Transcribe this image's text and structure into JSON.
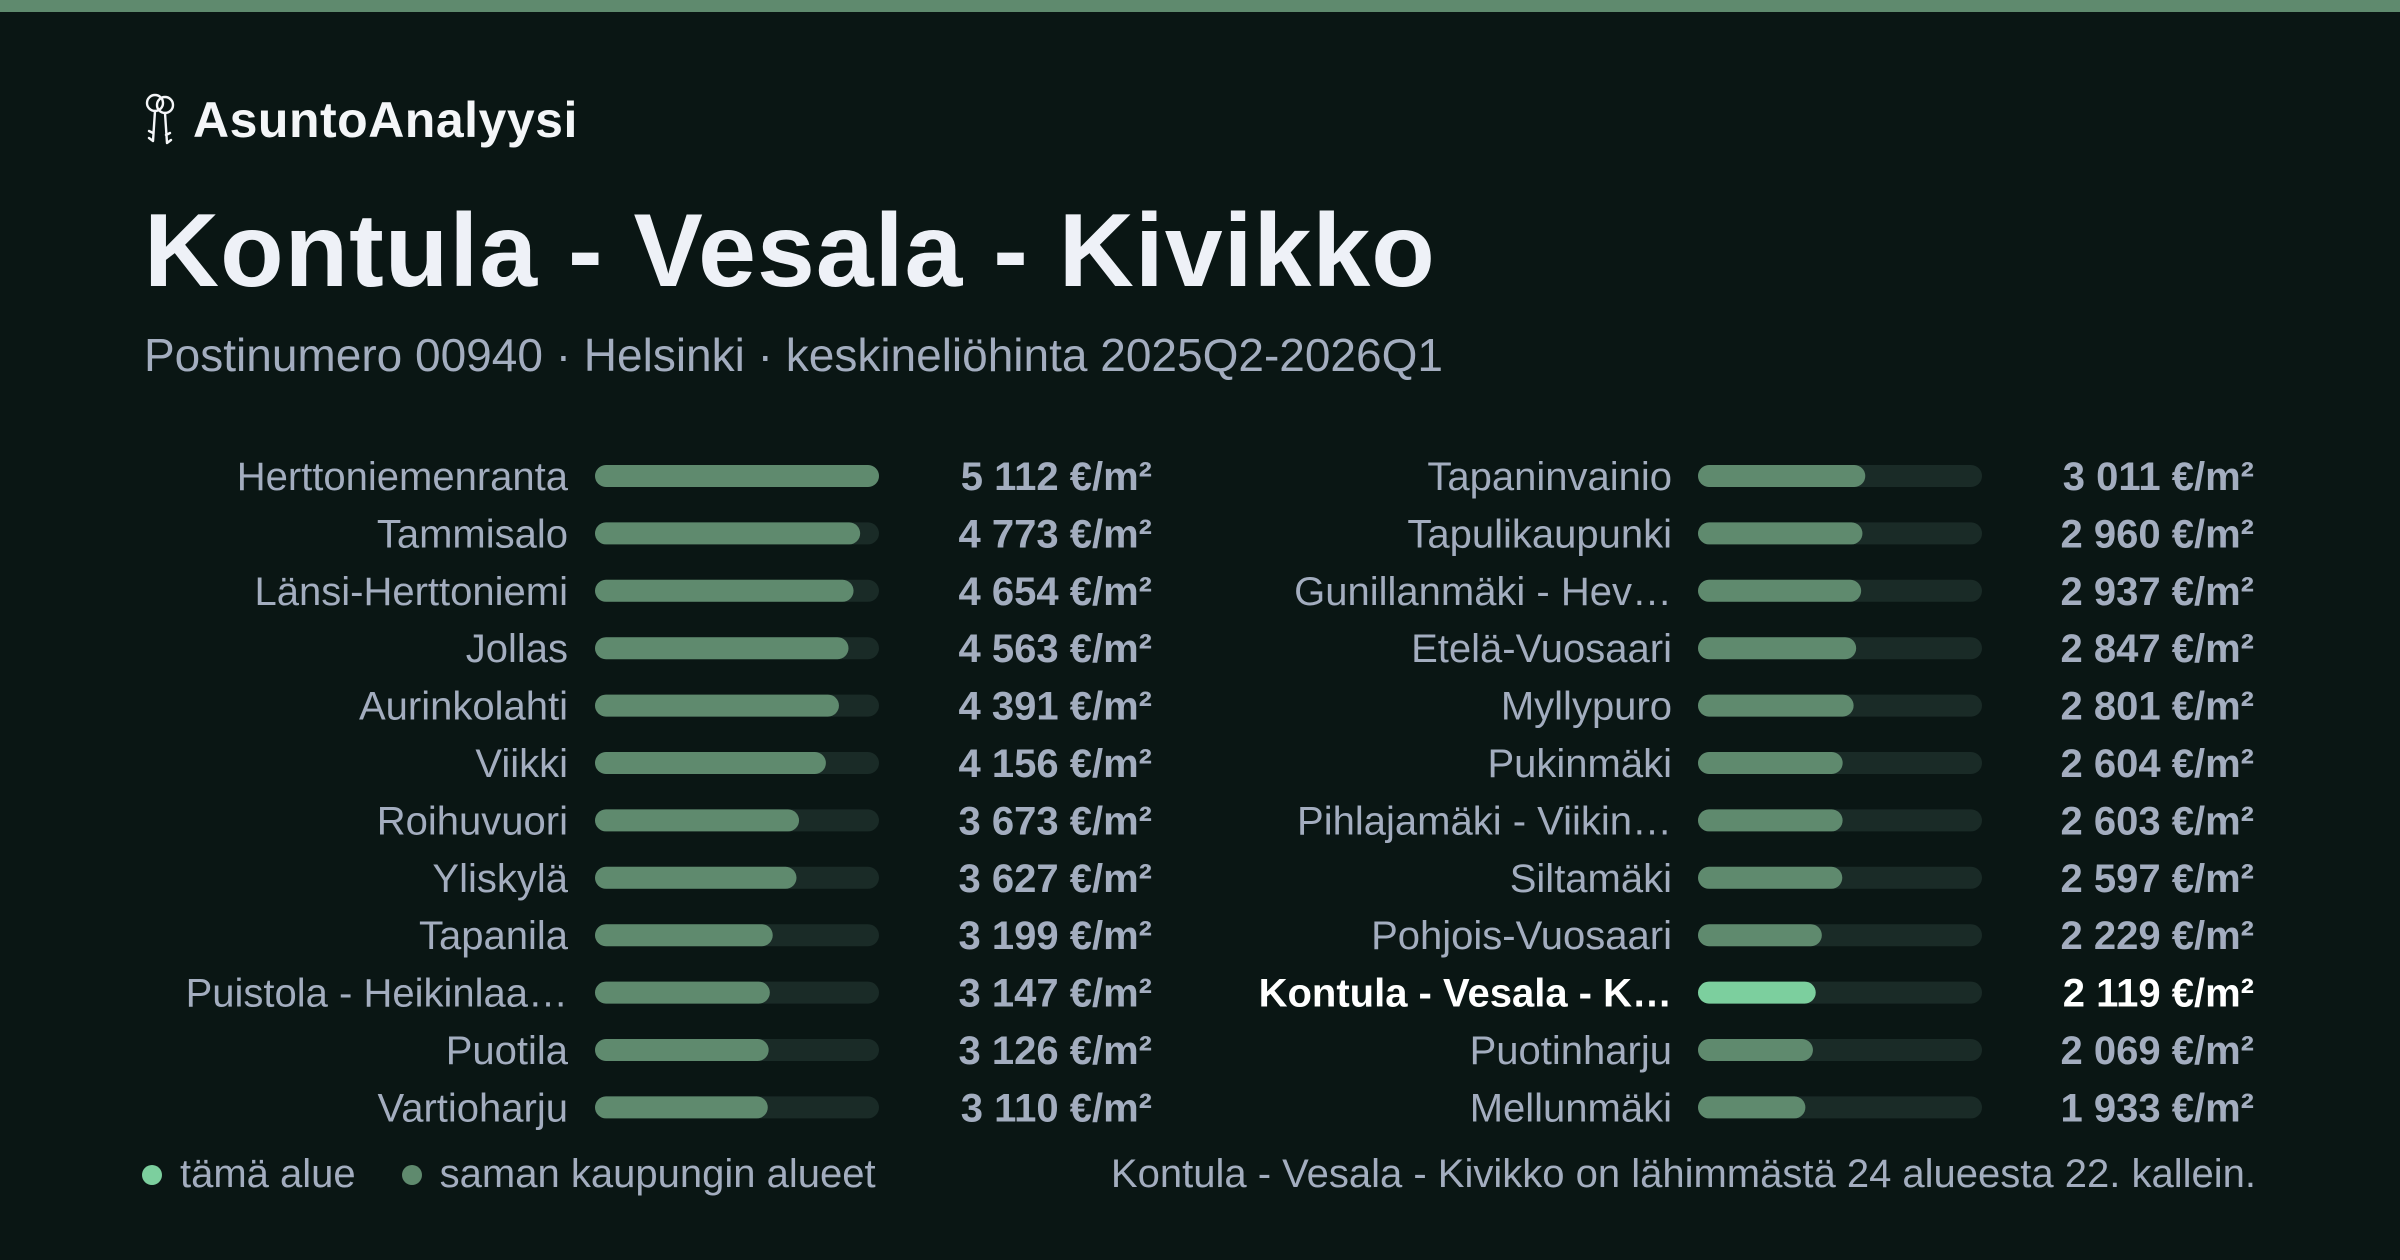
{
  "brand": {
    "name": "AsuntoAnalyysi",
    "icon": "keys-icon"
  },
  "header": {
    "title": "Kontula - Vesala - Kivikko",
    "subtitle": "Postinumero 00940 · Helsinki · keskineliöhinta 2025Q2-2026Q1"
  },
  "colors": {
    "background": "#0a1614",
    "accent_stripe": "#5f8a6e",
    "bar_default": "#5f8a6e",
    "bar_highlight": "#7ccf9e",
    "bar_track": "#1a2b27",
    "label": "#a3adbf",
    "label_highlight": "#ffffff"
  },
  "chart_data": {
    "type": "bar",
    "orientation": "horizontal",
    "unit": "€/m²",
    "xlim": [
      0,
      5112
    ],
    "highlight": "Kontula - Vesala - K…",
    "columns": [
      {
        "categories": [
          "Herttoniemenranta",
          "Tammisalo",
          "Länsi-Herttoniemi",
          "Jollas",
          "Aurinkolahti",
          "Viikki",
          "Roihuvuori",
          "Yliskylä",
          "Tapanila",
          "Puistola - Heikinlaa…",
          "Puotila",
          "Vartioharju"
        ],
        "values": [
          5112,
          4773,
          4654,
          4563,
          4391,
          4156,
          3673,
          3627,
          3199,
          3147,
          3126,
          3110
        ],
        "value_labels": [
          "5 112 €/m²",
          "4 773 €/m²",
          "4 654 €/m²",
          "4 563 €/m²",
          "4 391 €/m²",
          "4 156 €/m²",
          "3 673 €/m²",
          "3 627 €/m²",
          "3 199 €/m²",
          "3 147 €/m²",
          "3 126 €/m²",
          "3 110 €/m²"
        ]
      },
      {
        "categories": [
          "Tapaninvainio",
          "Tapulikaupunki",
          "Gunillanmäki - Hev…",
          "Etelä-Vuosaari",
          "Myllypuro",
          "Pukinmäki",
          "Pihlajamäki - Viikin…",
          "Siltamäki",
          "Pohjois-Vuosaari",
          "Kontula - Vesala - K…",
          "Puotinharju",
          "Mellunmäki"
        ],
        "values": [
          3011,
          2960,
          2937,
          2847,
          2801,
          2604,
          2603,
          2597,
          2229,
          2119,
          2069,
          1933
        ],
        "value_labels": [
          "3 011 €/m²",
          "2 960 €/m²",
          "2 937 €/m²",
          "2 847 €/m²",
          "2 801 €/m²",
          "2 604 €/m²",
          "2 603 €/m²",
          "2 597 €/m²",
          "2 229 €/m²",
          "2 119 €/m²",
          "2 069 €/m²",
          "1 933 €/m²"
        ]
      }
    ]
  },
  "legend": {
    "this_area": "tämä alue",
    "same_city": "saman kaupungin alueet"
  },
  "footer": {
    "rank_note": "Kontula - Vesala - Kivikko on lähimmästä 24 alueesta 22. kallein."
  }
}
